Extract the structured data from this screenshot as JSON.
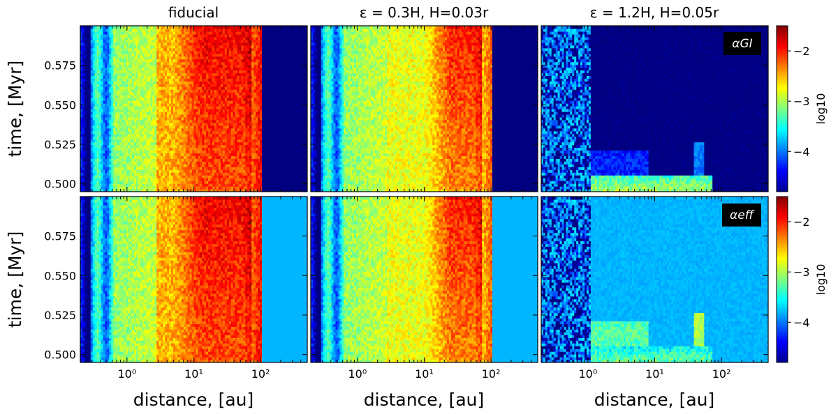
{
  "chart_data": {
    "type": "heatmap",
    "colormap": "jet",
    "columns": [
      {
        "title": "fiducial"
      },
      {
        "title": "ε = 0.3H, H=0.03r"
      },
      {
        "title": "ε = 1.2H, H=0.05r"
      }
    ],
    "rows": [
      {
        "quantity_label": "αGI",
        "colorbar_label": "log10",
        "ylabel": "time, [Myr]"
      },
      {
        "quantity_label": "αeff",
        "colorbar_label": "log10",
        "ylabel": "time, [Myr]"
      }
    ],
    "xlabel": "distance, [au]",
    "x_scale": "log",
    "xlim": [
      0.2,
      500
    ],
    "x_ticks": [
      1,
      10,
      100
    ],
    "x_tick_labels": [
      "10⁰",
      "10¹",
      "10²"
    ],
    "ylim": [
      0.495,
      0.6
    ],
    "y_ticks": [
      0.5,
      0.525,
      0.55,
      0.575
    ],
    "y_tick_labels": [
      "0.500",
      "0.525",
      "0.550",
      "0.575"
    ],
    "colorbar_range": [
      -4.8,
      -1.5
    ],
    "colorbar_ticks": [
      -2,
      -3,
      -4
    ],
    "colorbar_tick_labels": [
      "−2",
      "−3",
      "−4"
    ],
    "panels": [
      {
        "row": 0,
        "col": 0,
        "description_values": {
          "inner_level": -3.6,
          "mid_level": -2.5,
          "peak_level": -1.9,
          "peak_range_au": [
            10,
            60
          ],
          "outer_edge_au": 100,
          "outer_level": -4.8
        }
      },
      {
        "row": 0,
        "col": 1,
        "description_values": {
          "inner_level": -3.6,
          "mid_level": -2.8,
          "peak_level": -2.0,
          "peak_range_au": [
            20,
            60
          ],
          "outer_edge_au": 100,
          "outer_level": -4.8
        }
      },
      {
        "row": 0,
        "col": 2,
        "description_values": {
          "inner_level": -4.5,
          "burst_time": 0.5,
          "burst_level": -3.0,
          "late_level": -4.8
        }
      },
      {
        "row": 1,
        "col": 0,
        "description_values": {
          "inner_level": -3.6,
          "mid_level": -2.5,
          "peak_level": -1.9,
          "peak_range_au": [
            10,
            60
          ],
          "outer_edge_au": 100,
          "outer_level": -3.8
        }
      },
      {
        "row": 1,
        "col": 1,
        "description_values": {
          "inner_level": -3.6,
          "mid_level": -2.8,
          "peak_level": -2.0,
          "peak_range_au": [
            20,
            60
          ],
          "outer_edge_au": 100,
          "outer_level": -3.8
        }
      },
      {
        "row": 1,
        "col": 2,
        "description_values": {
          "inner_level": -4.5,
          "burst_time": 0.5,
          "burst_level": -3.2,
          "late_level": -3.8
        }
      }
    ]
  }
}
